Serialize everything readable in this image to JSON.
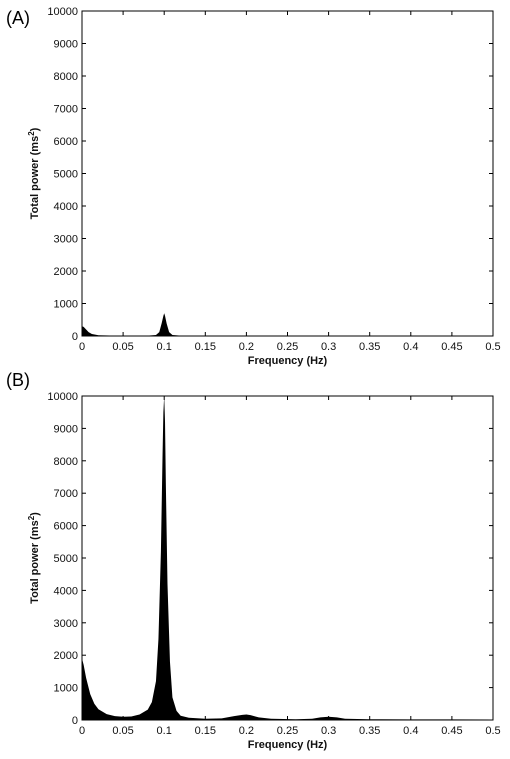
{
  "chart_data": [
    {
      "type": "area",
      "panel_label": "(A)",
      "xlabel": "Frequency (Hz)",
      "ylabel_main": "Total power (ms",
      "ylabel_sup": "2",
      "ylabel_end": ")",
      "xlim": [
        0,
        0.5
      ],
      "ylim": [
        0,
        10000
      ],
      "xticks": [
        "0",
        "0.05",
        "0.1",
        "0.15",
        "0.2",
        "0.25",
        "0.3",
        "0.35",
        "0.4",
        "0.45",
        "0.5"
      ],
      "yticks": [
        "0",
        "1000",
        "2000",
        "3000",
        "4000",
        "5000",
        "6000",
        "7000",
        "8000",
        "9000",
        "10000"
      ],
      "grid": false,
      "series": [
        {
          "x": [
            0,
            0.002,
            0.005,
            0.008,
            0.012,
            0.02,
            0.04,
            0.06,
            0.08,
            0.09,
            0.094,
            0.097,
            0.099,
            0.1,
            0.101,
            0.103,
            0.106,
            0.11,
            0.12,
            0.15,
            0.2,
            0.3,
            0.4,
            0.5
          ],
          "y": [
            300,
            280,
            200,
            120,
            60,
            25,
            10,
            8,
            10,
            30,
            120,
            400,
            620,
            700,
            620,
            380,
            120,
            30,
            10,
            5,
            5,
            5,
            5,
            5
          ]
        }
      ]
    },
    {
      "type": "area",
      "panel_label": "(B)",
      "xlabel": "Frequency (Hz)",
      "ylabel_main": "Total power (ms",
      "ylabel_sup": "2",
      "ylabel_end": ")",
      "xlim": [
        0,
        0.5
      ],
      "ylim": [
        0,
        10000
      ],
      "xticks": [
        "0",
        "0.05",
        "0.1",
        "0.15",
        "0.2",
        "0.25",
        "0.3",
        "0.35",
        "0.4",
        "0.45",
        "0.5"
      ],
      "yticks": [
        "0",
        "1000",
        "2000",
        "3000",
        "4000",
        "5000",
        "6000",
        "7000",
        "8000",
        "9000",
        "10000"
      ],
      "grid": false,
      "series": [
        {
          "x": [
            0,
            0.002,
            0.005,
            0.01,
            0.015,
            0.02,
            0.03,
            0.04,
            0.05,
            0.06,
            0.07,
            0.08,
            0.085,
            0.09,
            0.093,
            0.096,
            0.098,
            0.099,
            0.1,
            0.101,
            0.102,
            0.104,
            0.107,
            0.11,
            0.115,
            0.12,
            0.13,
            0.15,
            0.17,
            0.185,
            0.195,
            0.2,
            0.205,
            0.215,
            0.23,
            0.26,
            0.28,
            0.29,
            0.3,
            0.31,
            0.32,
            0.35,
            0.4,
            0.45,
            0.5
          ],
          "y": [
            1900,
            1700,
            1300,
            800,
            500,
            330,
            180,
            120,
            100,
            110,
            170,
            320,
            550,
            1200,
            2500,
            5200,
            8200,
            9500,
            10000,
            9200,
            7300,
            4200,
            1800,
            700,
            280,
            130,
            70,
            40,
            50,
            120,
            160,
            170,
            150,
            80,
            40,
            25,
            40,
            80,
            100,
            80,
            40,
            25,
            20,
            18,
            15
          ]
        }
      ]
    }
  ]
}
